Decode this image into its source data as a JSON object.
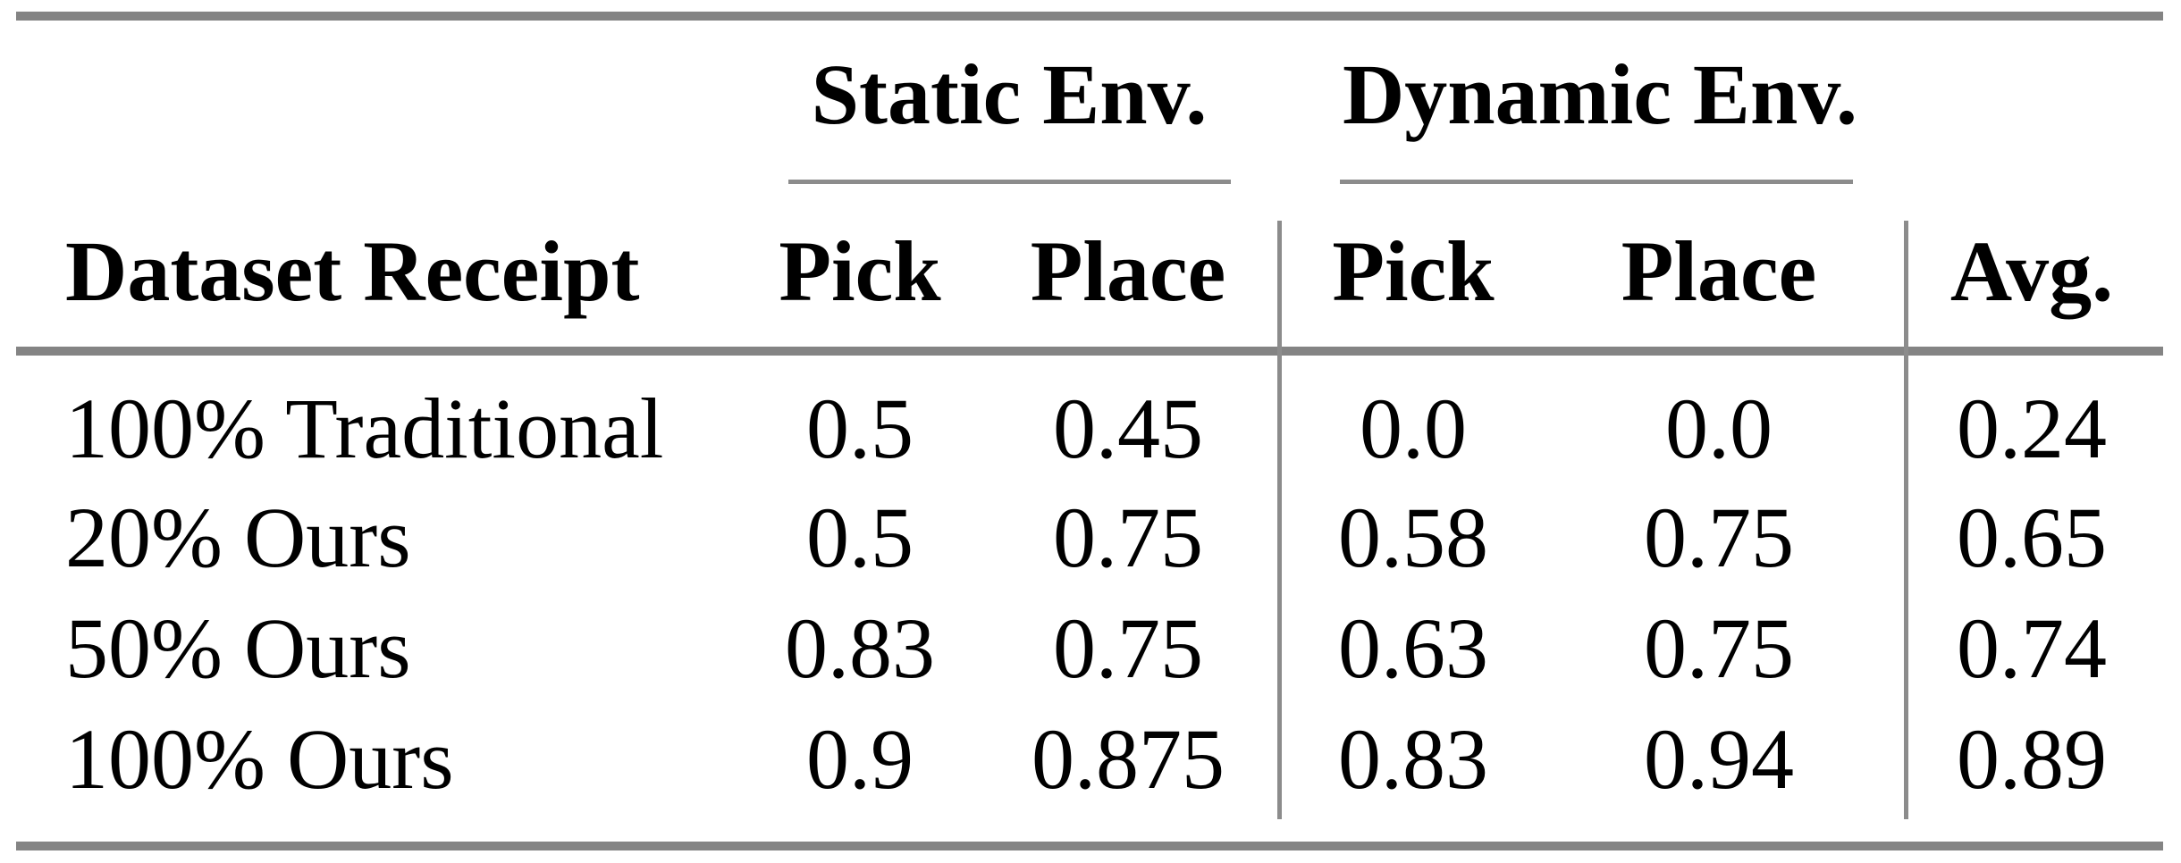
{
  "table": {
    "groups": [
      {
        "label": "Static Env."
      },
      {
        "label": "Dynamic Env."
      }
    ],
    "headers": {
      "dataset": "Dataset Receipt",
      "static_pick": "Pick",
      "static_place": "Place",
      "dynamic_pick": "Pick",
      "dynamic_place": "Place",
      "avg": "Avg."
    },
    "rows": [
      {
        "label": "100% Traditional",
        "values": [
          "0.5",
          "0.45",
          "0.0",
          "0.0",
          "0.24"
        ]
      },
      {
        "label": "20% Ours",
        "values": [
          "0.5",
          "0.75",
          "0.58",
          "0.75",
          "0.65"
        ]
      },
      {
        "label": "50% Ours",
        "values": [
          "0.83",
          "0.75",
          "0.63",
          "0.75",
          "0.74"
        ]
      },
      {
        "label": "100% Ours",
        "values": [
          "0.9",
          "0.875",
          "0.83",
          "0.94",
          "0.89"
        ]
      }
    ],
    "colors": {
      "rule": "#848484",
      "text": "#000000",
      "background": "#ffffff"
    }
  }
}
